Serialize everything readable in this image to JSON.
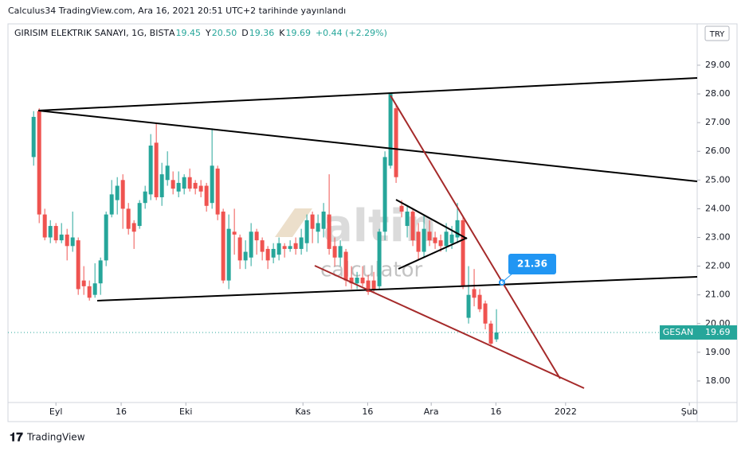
{
  "header": {
    "published": "Calculus34 TradingView.com, Ara 16, 2021 20:51 UTC+2 tarihinde yayınlandı",
    "symbol": "GIRISIM ELEKTRIK SANAYI, 1G, BIST",
    "ohlc": [
      {
        "label": "A",
        "value": "19.45"
      },
      {
        "label": "Y",
        "value": "20.50"
      },
      {
        "label": "D",
        "value": "19.36"
      },
      {
        "label": "K",
        "value": "19.69"
      }
    ],
    "change": "+0.44 (+2.29%)",
    "currency": "TRY"
  },
  "watermark": {
    "brand": "altin",
    "sub": "calculator"
  },
  "footer": {
    "logo": "TradingView"
  },
  "chart_data": {
    "type": "candlestick",
    "up_color": "#26a69a",
    "down_color": "#ef5350",
    "open": [
      25.8,
      27.4,
      23.8,
      23.0,
      23.4,
      22.9,
      23.1,
      22.7,
      22.9,
      21.5,
      21.3,
      21.0,
      21.4,
      22.2,
      23.8,
      24.3,
      25.0,
      24.0,
      23.5,
      23.4,
      24.2,
      24.5,
      26.3,
      24.4,
      25.0,
      25.0,
      24.6,
      24.7,
      25.1,
      24.9,
      24.8,
      24.8,
      24.2,
      25.4,
      23.9,
      21.5,
      23.2,
      23.0,
      22.2,
      22.3,
      23.2,
      22.9,
      22.6,
      22.3,
      22.4,
      22.7,
      22.6,
      22.8,
      22.6,
      22.8,
      23.8,
      23.2,
      23.3,
      23.8,
      22.7,
      22.3,
      22.5,
      21.6,
      21.4,
      21.6,
      21.5,
      21.5,
      21.3,
      23.2,
      25.5,
      27.5,
      24.1,
      23.4,
      23.9,
      23.2,
      22.5,
      23.2,
      23.0,
      22.9,
      22.7,
      22.8,
      23.0,
      23.6,
      20.2,
      21.2,
      21.0,
      20.7,
      20.0,
      19.45
    ],
    "high": [
      27.4,
      27.5,
      24.0,
      23.6,
      23.5,
      23.5,
      23.3,
      23.9,
      23.0,
      22.0,
      21.5,
      22.1,
      22.3,
      23.9,
      25.0,
      25.1,
      25.2,
      24.2,
      23.6,
      24.3,
      24.8,
      26.6,
      27.0,
      25.6,
      26.0,
      25.3,
      25.3,
      25.2,
      25.4,
      25.0,
      25.0,
      24.9,
      26.8,
      25.5,
      24.0,
      23.8,
      24.0,
      23.1,
      22.9,
      23.5,
      23.3,
      23.0,
      22.7,
      22.8,
      23.0,
      22.8,
      22.9,
      23.0,
      23.3,
      23.8,
      23.9,
      23.8,
      24.2,
      25.2,
      23.0,
      22.9,
      22.6,
      22.0,
      21.8,
      22.0,
      21.7,
      21.8,
      23.3,
      26.0,
      28.0,
      27.6,
      24.3,
      24.1,
      24.0,
      23.5,
      23.8,
      23.6,
      23.2,
      23.1,
      23.5,
      23.4,
      24.2,
      23.7,
      22.0,
      21.9,
      21.2,
      20.8,
      20.1,
      20.5
    ],
    "low": [
      25.5,
      23.5,
      22.9,
      22.8,
      22.8,
      22.8,
      22.2,
      22.5,
      21.0,
      21.0,
      20.8,
      20.9,
      21.0,
      22.0,
      23.7,
      23.8,
      23.3,
      23.1,
      22.6,
      23.3,
      24.0,
      24.3,
      24.3,
      24.1,
      24.8,
      24.5,
      24.4,
      24.5,
      24.6,
      24.5,
      24.4,
      23.9,
      24.0,
      23.6,
      21.4,
      21.2,
      22.4,
      21.9,
      21.9,
      22.0,
      22.4,
      22.2,
      21.9,
      22.1,
      22.2,
      22.3,
      22.5,
      22.4,
      22.4,
      22.5,
      22.8,
      22.8,
      23.0,
      22.4,
      22.0,
      22.0,
      21.3,
      21.2,
      21.2,
      21.3,
      21.0,
      21.1,
      21.2,
      22.9,
      25.4,
      24.9,
      23.7,
      23.0,
      22.7,
      22.2,
      22.3,
      22.7,
      22.6,
      22.5,
      22.5,
      22.6,
      22.8,
      21.2,
      20.0,
      20.6,
      20.4,
      19.8,
      19.2,
      19.36
    ],
    "close": [
      27.2,
      23.8,
      23.0,
      23.4,
      22.9,
      23.1,
      22.7,
      23.0,
      21.2,
      21.3,
      20.9,
      21.4,
      22.2,
      23.8,
      24.5,
      24.8,
      24.0,
      23.3,
      23.2,
      24.2,
      24.6,
      26.2,
      24.4,
      25.2,
      25.5,
      24.7,
      24.9,
      25.1,
      24.7,
      24.7,
      24.6,
      24.1,
      25.5,
      23.8,
      21.5,
      23.3,
      23.1,
      22.2,
      22.5,
      23.2,
      22.9,
      22.5,
      22.2,
      22.6,
      22.8,
      22.6,
      22.7,
      22.6,
      23.0,
      23.6,
      23.3,
      23.5,
      23.9,
      22.6,
      22.3,
      22.7,
      21.5,
      21.4,
      21.6,
      21.4,
      21.1,
      21.2,
      23.2,
      25.8,
      28.0,
      25.1,
      23.9,
      23.9,
      22.9,
      22.5,
      23.3,
      22.9,
      22.8,
      22.7,
      23.2,
      23.1,
      23.6,
      21.3,
      21.0,
      20.9,
      20.5,
      20.0,
      19.3,
      19.69
    ],
    "last_label": "GESAN",
    "callout": "21.36",
    "ylim": [
      17.25,
      30.44
    ],
    "yticks": [
      {
        "value": 18,
        "label": "18.00"
      },
      {
        "value": 19,
        "label": "19.00"
      },
      {
        "value": 20,
        "label": "20.00"
      },
      {
        "value": 21,
        "label": "21.00"
      },
      {
        "value": 22,
        "label": "22.00"
      },
      {
        "value": 23,
        "label": "23.00"
      },
      {
        "value": 24,
        "label": "24.00"
      },
      {
        "value": 25,
        "label": "25.00"
      },
      {
        "value": 26,
        "label": "26.00"
      },
      {
        "value": 27,
        "label": "27.00"
      },
      {
        "value": 28,
        "label": "28.00"
      },
      {
        "value": 29,
        "label": "29.00"
      }
    ],
    "xlim": [
      -4.6,
      119
    ],
    "xticks": [
      {
        "value": 4,
        "label": "Eyl"
      },
      {
        "value": 15.7,
        "label": "16"
      },
      {
        "value": 27.3,
        "label": "Eki"
      },
      {
        "value": 48.3,
        "label": "Kas"
      },
      {
        "value": 59.9,
        "label": "16"
      },
      {
        "value": 71.3,
        "label": "Ara"
      },
      {
        "value": 82.9,
        "label": "16"
      },
      {
        "value": 95.4,
        "label": "2022"
      },
      {
        "value": 117.6,
        "label": "Şub"
      }
    ]
  }
}
